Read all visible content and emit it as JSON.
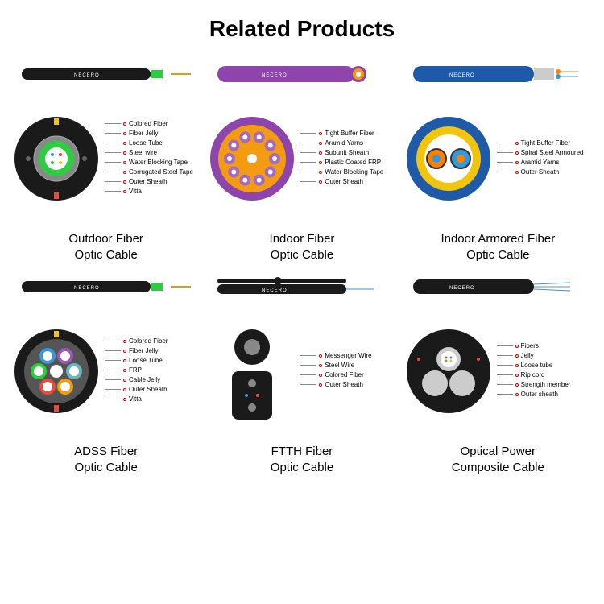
{
  "title": "Related Products",
  "brand": "NECERO",
  "products": [
    {
      "name": "Outdoor Fiber\nOptic Cable",
      "cable_color": "#1a1a1a",
      "cross_bg": "#1a1a1a",
      "inner_color": "#2ecc40",
      "core_color": "#ffffff",
      "labels": [
        "Colored Fiber",
        "Fiber Jelly",
        "Loose Tube",
        "Steel wire",
        "Water Blocking Tape",
        "Corrugated Steel Tape",
        "Outer Sheath",
        "Vitta"
      ]
    },
    {
      "name": "Indoor Fiber\nOptic Cable",
      "cable_color": "#8e44ad",
      "cross_bg": "#8e44ad",
      "inner_color": "#f39c12",
      "core_color": "#ffffff",
      "labels": [
        "Tight Buffer Fiber",
        "Aramid Yarns",
        "Subunit Sheath",
        "Plastic Coated FRP",
        "Water Blocking Tape",
        "Outer Sheath"
      ]
    },
    {
      "name": "Indoor Armored Fiber\nOptic Cable",
      "cable_color": "#1e5aa8",
      "cross_bg": "#1e5aa8",
      "inner_color": "#f1c40f",
      "core_color": "#ffffff",
      "labels": [
        "Tight Buffer Fiber",
        "Spiral Steel Armoured",
        "Aramid Yarns",
        "Outer Sheath"
      ]
    },
    {
      "name": "ADSS Fiber\nOptic Cable",
      "cable_color": "#1a1a1a",
      "cross_bg": "#1a1a1a",
      "inner_color": "#555",
      "core_color": "#6eb5c0",
      "labels": [
        "Colored Fiber",
        "Fiber Jelly",
        "Loose Tube",
        "FRP",
        "Cable Jelly",
        "Outer Sheath",
        "Vitta"
      ]
    },
    {
      "name": "FTTH Fiber\nOptic Cable",
      "cable_color": "#1a1a1a",
      "cross_bg": "#1a1a1a",
      "inner_color": "#333",
      "core_color": "#888",
      "labels": [
        "Messenger Wire",
        "Steel Wire",
        "Colored Fiber",
        "Outer Sheath"
      ]
    },
    {
      "name": "Optical Power\nComposite Cable",
      "cable_color": "#1a1a1a",
      "cross_bg": "#1a1a1a",
      "inner_color": "#ccc",
      "core_color": "#fff",
      "labels": [
        "Fibers",
        "Jelly",
        "Loose tube",
        "Rip cord",
        "Strength member",
        "Outer sheath"
      ]
    }
  ],
  "colors": {
    "text": "#000000",
    "label_text": "#333333",
    "accent_red": "#c0392b"
  }
}
